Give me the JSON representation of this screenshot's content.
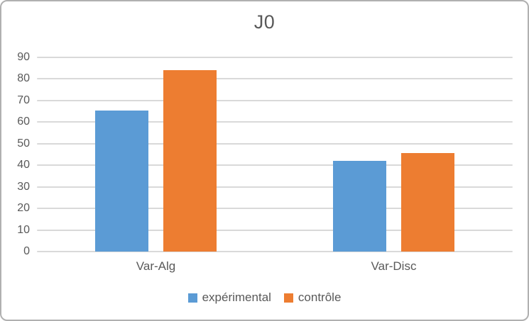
{
  "frame": {
    "background_color": "#ffffff",
    "border_color": "#b0b0b0"
  },
  "chart_data": {
    "type": "bar",
    "title": "J0",
    "categories": [
      "Var-Alg",
      "Var-Disc"
    ],
    "series": [
      {
        "name": "expérimental",
        "color": "#5B9BD5",
        "values": [
          65.5,
          42
        ]
      },
      {
        "name": "contrôle",
        "color": "#ED7D31",
        "values": [
          84,
          45.5
        ]
      }
    ],
    "xlabel": "",
    "ylabel": "",
    "ylim": [
      0,
      90
    ],
    "yticks": [
      0,
      10,
      20,
      30,
      40,
      50,
      60,
      70,
      80,
      90
    ],
    "grid": true,
    "gridline_color": "#d9d9d9",
    "text_color": "#595959",
    "legend_position": "bottom"
  }
}
